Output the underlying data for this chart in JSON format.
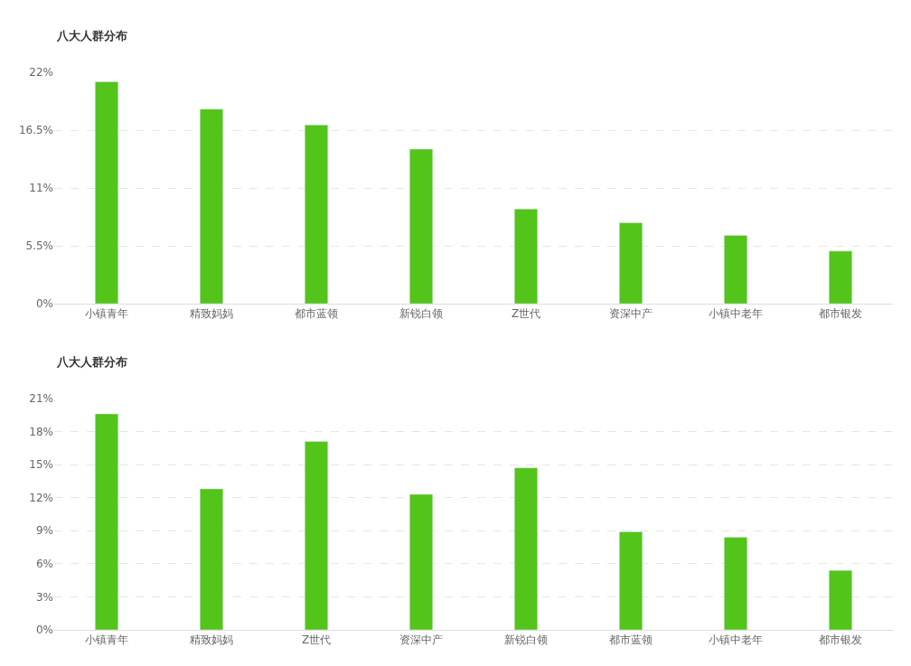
{
  "chart_data": [
    {
      "type": "bar",
      "title": "八大人群分布",
      "categories": [
        "小镇青年",
        "精致妈妈",
        "都市蓝领",
        "新锐白领",
        "Z世代",
        "资深中产",
        "小镇中老年",
        "都市银发"
      ],
      "values": [
        21.1,
        18.5,
        17.0,
        14.7,
        9.0,
        7.7,
        6.5,
        5.0
      ],
      "color": "#52c41a",
      "ylim": [
        0,
        22
      ],
      "yticks": [
        {
          "value": 0,
          "label": "0%"
        },
        {
          "value": 5.5,
          "label": "5.5%"
        },
        {
          "value": 11,
          "label": "11%"
        },
        {
          "value": 16.5,
          "label": "16.5%"
        },
        {
          "value": 22,
          "label": "22%"
        }
      ],
      "grid": "y"
    },
    {
      "type": "bar",
      "title": "八大人群分布",
      "categories": [
        "小镇青年",
        "精致妈妈",
        "Z世代",
        "资深中产",
        "新锐白领",
        "都市蓝领",
        "小镇中老年",
        "都市银发"
      ],
      "values": [
        19.6,
        12.8,
        17.1,
        12.3,
        14.7,
        8.9,
        8.4,
        5.4
      ],
      "color": "#52c41a",
      "ylim": [
        0,
        21
      ],
      "yticks": [
        {
          "value": 0,
          "label": "0%"
        },
        {
          "value": 3,
          "label": "3%"
        },
        {
          "value": 6,
          "label": "6%"
        },
        {
          "value": 9,
          "label": "9%"
        },
        {
          "value": 12,
          "label": "12%"
        },
        {
          "value": 15,
          "label": "15%"
        },
        {
          "value": 18,
          "label": "18%"
        },
        {
          "value": 21,
          "label": "21%"
        }
      ],
      "grid": "y"
    }
  ]
}
